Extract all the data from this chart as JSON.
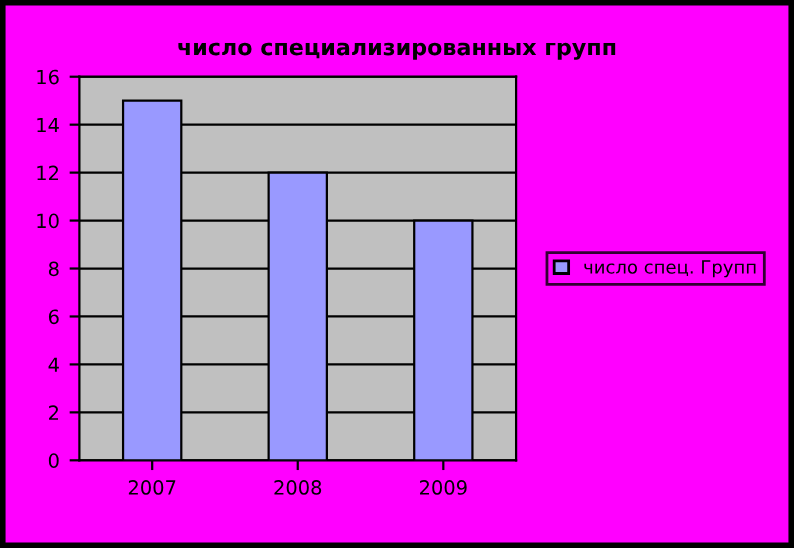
{
  "chart_data": {
    "type": "bar",
    "title": "число специализированных групп",
    "categories": [
      "2007",
      "2008",
      "2009"
    ],
    "series": [
      {
        "name": "число спец. Групп",
        "color": "#9999ff",
        "values": [
          15,
          12,
          10
        ]
      }
    ],
    "ylim": [
      0,
      16
    ],
    "yticks": [
      0,
      2,
      4,
      6,
      8,
      10,
      12,
      14,
      16
    ],
    "grid": "y",
    "legend": "right"
  }
}
